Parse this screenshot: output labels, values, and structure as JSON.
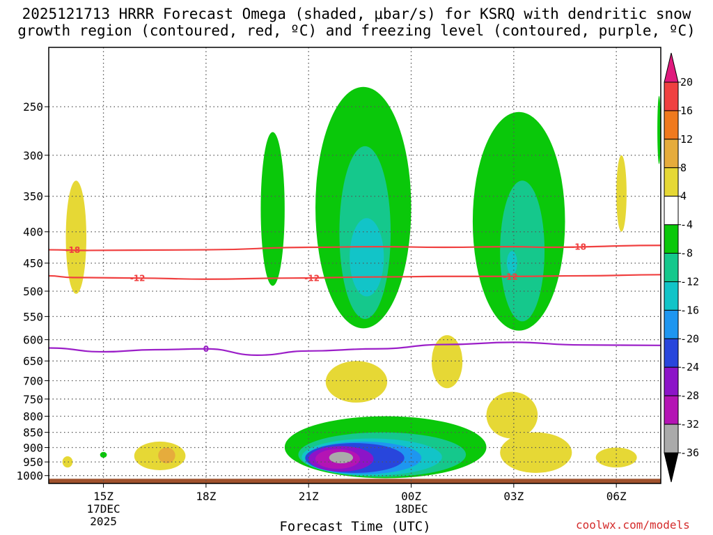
{
  "title_line1": "2025121713 HRRR Forecast Omega (shaded, μbar/s) for KSRQ with dendritic snow",
  "title_line2": "growth region (contoured, red, ºC) and freezing level (contoured, purple, ºC)",
  "watermark": "coolwx.com/models",
  "chart_data": {
    "type": "heatmap",
    "title": "2025121713 HRRR Forecast Omega (shaded, μbar/s) for KSRQ with dendritic snow growth region (contoured, red, ºC) and freezing level (contoured, purple, ºC)",
    "xlabel": "Forecast Time (UTC)",
    "ylabel": "",
    "y_units": "hPa",
    "y_range": [
      1030,
      200
    ],
    "x_range_hours_since_15Z": [
      -1.6,
      16.3
    ],
    "x_ticks": [
      {
        "label": "15Z",
        "extra": [
          "17DEC",
          "2025"
        ],
        "hour": 0
      },
      {
        "label": "18Z",
        "extra": [],
        "hour": 3
      },
      {
        "label": "21Z",
        "extra": [],
        "hour": 6
      },
      {
        "label": "00Z",
        "extra": [
          "18DEC"
        ],
        "hour": 9
      },
      {
        "label": "03Z",
        "extra": [],
        "hour": 12
      },
      {
        "label": "06Z",
        "extra": [],
        "hour": 15
      }
    ],
    "y_ticks": [
      250,
      300,
      350,
      400,
      450,
      500,
      550,
      600,
      650,
      700,
      750,
      800,
      850,
      900,
      950,
      1000
    ],
    "colorbar": {
      "units": "μbar/s",
      "tick_labels": [
        "20",
        "16",
        "12",
        "8",
        "4",
        "-4",
        "-8",
        "-12",
        "-16",
        "-20",
        "-24",
        "-28",
        "-32",
        "-36"
      ],
      "bins": [
        {
          "range": "> 20",
          "color": "#e0197d"
        },
        {
          "range": "16 to 20",
          "color": "#f04040"
        },
        {
          "range": "12 to 16",
          "color": "#f07a1e"
        },
        {
          "range": "8 to 12",
          "color": "#e6ac3c"
        },
        {
          "range": "4 to 8",
          "color": "#e6d835"
        },
        {
          "range": "-4 to 4",
          "color": "#ffffff"
        },
        {
          "range": "-8 to -4",
          "color": "#0ac80a"
        },
        {
          "range": "-12 to -8",
          "color": "#15c88c"
        },
        {
          "range": "-16 to -12",
          "color": "#12c4c8"
        },
        {
          "range": "-20 to -16",
          "color": "#1e96f0"
        },
        {
          "range": "-24 to -20",
          "color": "#2846dc"
        },
        {
          "range": "-28 to -24",
          "color": "#8c14c8"
        },
        {
          "range": "-32 to -28",
          "color": "#b414b4"
        },
        {
          "range": "-36 to -32",
          "color": "#aaaaaa"
        },
        {
          "range": "< -36",
          "color": "#000000"
        }
      ]
    },
    "contours": [
      {
        "name": "-18 ºC isotherm",
        "label": "-18",
        "color": "#f04040",
        "points": [
          [
            -1.6,
            428
          ],
          [
            -0.5,
            429
          ],
          [
            3,
            428
          ],
          [
            6,
            424
          ],
          [
            8,
            423
          ],
          [
            10,
            424
          ],
          [
            12,
            423
          ],
          [
            13,
            424
          ],
          [
            16.3,
            421
          ]
        ],
        "label_positions": [
          [
            -0.9,
            428
          ],
          [
            13.9,
            423
          ]
        ]
      },
      {
        "name": "-12 ºC isotherm",
        "label": "-12",
        "color": "#f04040",
        "points": [
          [
            -1.6,
            472
          ],
          [
            -0.9,
            475
          ],
          [
            1,
            476
          ],
          [
            3,
            478
          ],
          [
            5.5,
            476
          ],
          [
            8,
            474
          ],
          [
            10,
            473
          ],
          [
            12,
            473
          ],
          [
            14,
            472
          ],
          [
            16.3,
            470
          ]
        ],
        "label_positions": [
          [
            1,
            476
          ],
          [
            6.1,
            476
          ],
          [
            11.9,
            473
          ]
        ]
      },
      {
        "name": "0 ºC isotherm (freezing level)",
        "label": "0",
        "color": "#9b1ec8",
        "points": [
          [
            -1.6,
            619
          ],
          [
            0,
            628
          ],
          [
            1.5,
            623
          ],
          [
            3,
            621
          ],
          [
            4.5,
            636
          ],
          [
            6,
            626
          ],
          [
            8,
            621
          ],
          [
            10,
            611
          ],
          [
            12,
            606
          ],
          [
            14,
            612
          ],
          [
            16.3,
            613
          ]
        ],
        "label_positions": [
          [
            3,
            621
          ]
        ]
      }
    ],
    "shaded_regions": [
      {
        "bin": "4 to 8",
        "hours": [
          -1.1,
          -0.5
        ],
        "pressure_hPa": [
          330,
          505
        ]
      },
      {
        "bin": "4 to 8",
        "hours": [
          -1.2,
          -0.9
        ],
        "pressure_hPa": [
          930,
          970
        ]
      },
      {
        "bin": "-8 to -4",
        "hours": [
          -0.1,
          0.1
        ],
        "pressure_hPa": [
          915,
          935
        ]
      },
      {
        "bin": "4 to 8",
        "hours": [
          0.9,
          2.4
        ],
        "pressure_hPa": [
          880,
          980
        ]
      },
      {
        "bin": "8 to 12",
        "hours": [
          1.6,
          2.1
        ],
        "pressure_hPa": [
          900,
          955
        ]
      },
      {
        "bin": "-8 to -4",
        "hours": [
          4.6,
          5.3
        ],
        "pressure_hPa": [
          275,
          490
        ]
      },
      {
        "bin": "-8 to -4",
        "hours": [
          6.2,
          9.0
        ],
        "pressure_hPa": [
          232,
          575
        ]
      },
      {
        "bin": "-12 to -8",
        "hours": [
          6.9,
          8.4
        ],
        "pressure_hPa": [
          290,
          555
        ]
      },
      {
        "bin": "-16 to -12",
        "hours": [
          7.2,
          8.2
        ],
        "pressure_hPa": [
          380,
          510
        ]
      },
      {
        "bin": "-8 to -4",
        "hours": [
          10.8,
          13.5
        ],
        "pressure_hPa": [
          255,
          580
        ]
      },
      {
        "bin": "-12 to -8",
        "hours": [
          11.6,
          12.9
        ],
        "pressure_hPa": [
          330,
          560
        ]
      },
      {
        "bin": "-16 to -12",
        "hours": [
          11.8,
          12.1
        ],
        "pressure_hPa": [
          430,
          470
        ]
      },
      {
        "bin": "-8 to -4",
        "hours": [
          16.2,
          16.3
        ],
        "pressure_hPa": [
          240,
          310
        ]
      },
      {
        "bin": "4 to 8",
        "hours": [
          15,
          15.3
        ],
        "pressure_hPa": [
          300,
          400
        ]
      },
      {
        "bin": "4 to 8",
        "hours": [
          6.5,
          8.3
        ],
        "pressure_hPa": [
          650,
          760
        ]
      },
      {
        "bin": "4 to 8",
        "hours": [
          9.6,
          10.5
        ],
        "pressure_hPa": [
          590,
          720
        ]
      },
      {
        "bin": "4 to 8",
        "hours": [
          11.2,
          12.7
        ],
        "pressure_hPa": [
          730,
          870
        ]
      },
      {
        "bin": "4 to 8",
        "hours": [
          11.6,
          13.7
        ],
        "pressure_hPa": [
          850,
          990
        ]
      },
      {
        "bin": "4 to 8",
        "hours": [
          14.4,
          15.6
        ],
        "pressure_hPa": [
          900,
          970
        ]
      },
      {
        "bin": "-8 to -4",
        "hours": [
          5.3,
          11.2
        ],
        "pressure_hPa": [
          800,
          1010
        ]
      },
      {
        "bin": "-12 to -8",
        "hours": [
          5.7,
          10.6
        ],
        "pressure_hPa": [
          850,
          1005
        ]
      },
      {
        "bin": "-16 to -12",
        "hours": [
          5.8,
          9.9
        ],
        "pressure_hPa": [
          870,
          1000
        ]
      },
      {
        "bin": "-20 to -16",
        "hours": [
          5.9,
          9.3
        ],
        "pressure_hPa": [
          880,
          995
        ]
      },
      {
        "bin": "-24 to -20",
        "hours": [
          5.9,
          8.8
        ],
        "pressure_hPa": [
          885,
          990
        ]
      },
      {
        "bin": "-28 to -24",
        "hours": [
          6.0,
          7.9
        ],
        "pressure_hPa": [
          895,
          985
        ]
      },
      {
        "bin": "-32 to -28",
        "hours": [
          6.2,
          7.5
        ],
        "pressure_hPa": [
          905,
          975
        ]
      },
      {
        "bin": "-36 to -32",
        "hours": [
          6.6,
          7.3
        ],
        "pressure_hPa": [
          915,
          955
        ]
      }
    ],
    "terrain": {
      "color": "#a0522d",
      "from_pressure_hPa": 1012
    }
  }
}
